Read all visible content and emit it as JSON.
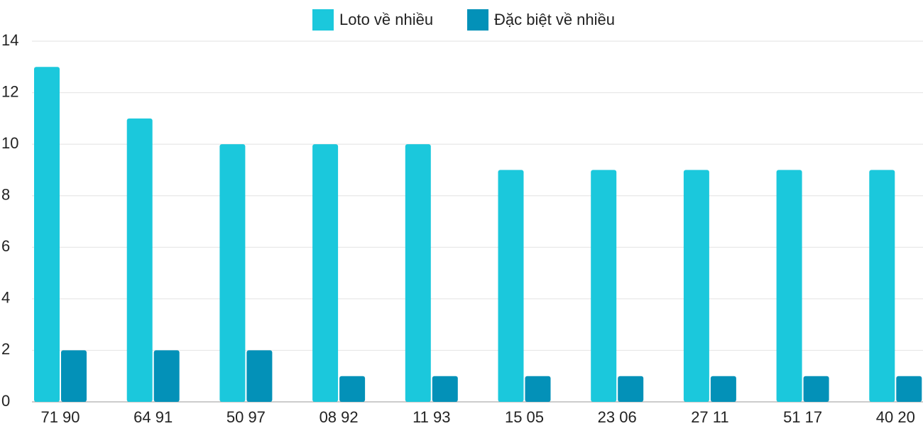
{
  "chart_data": {
    "type": "bar",
    "categories": [
      "71 90",
      "64 91",
      "50 97",
      "08 92",
      "11 93",
      "15 05",
      "23 06",
      "27 11",
      "51 17",
      "40 20"
    ],
    "series": [
      {
        "name": "Loto về nhiều",
        "color": "#1bc8dc",
        "values": [
          13,
          11,
          10,
          10,
          10,
          9,
          9,
          9,
          9,
          9
        ]
      },
      {
        "name": "Đặc biệt về nhiều",
        "color": "#0391b8",
        "values": [
          2,
          2,
          2,
          1,
          1,
          1,
          1,
          1,
          1,
          1
        ]
      }
    ],
    "ylim": [
      0,
      14
    ],
    "yticks": [
      0,
      2,
      4,
      6,
      8,
      10,
      12,
      14
    ],
    "grid": true,
    "legend": "top"
  }
}
